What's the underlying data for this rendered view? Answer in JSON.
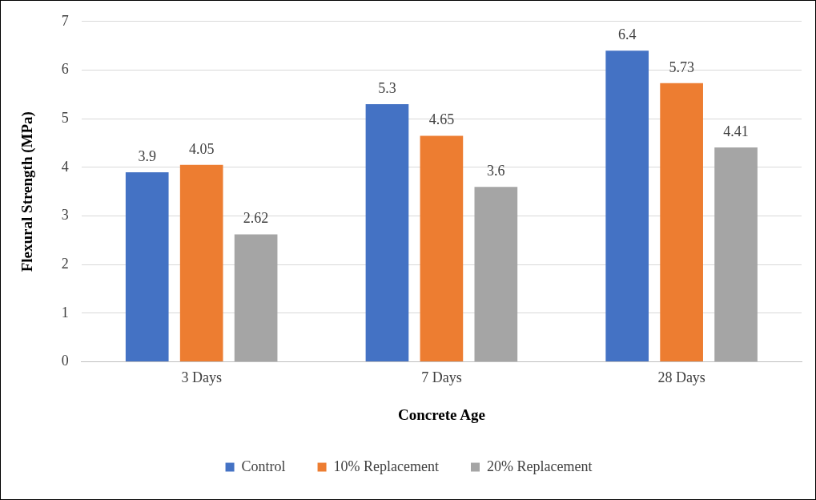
{
  "chart_data": {
    "type": "bar",
    "xlabel": "Concrete Age",
    "ylabel": "Flexural Strength (MPa)",
    "categories": [
      "3 Days",
      "7 Days",
      "28 Days"
    ],
    "series": [
      {
        "name": "Control",
        "color": "#4472c4",
        "values": [
          3.9,
          5.3,
          6.4
        ]
      },
      {
        "name": "10% Replacement",
        "color": "#ed7d31",
        "values": [
          4.05,
          4.65,
          5.73
        ]
      },
      {
        "name": "20% Replacement",
        "color": "#a5a5a5",
        "values": [
          2.62,
          3.6,
          4.41
        ]
      }
    ],
    "ylim": [
      0,
      7
    ],
    "yticks": [
      0,
      1,
      2,
      3,
      4,
      5,
      6,
      7
    ],
    "grid": "y",
    "legend": "bottom",
    "data_labels": true
  }
}
